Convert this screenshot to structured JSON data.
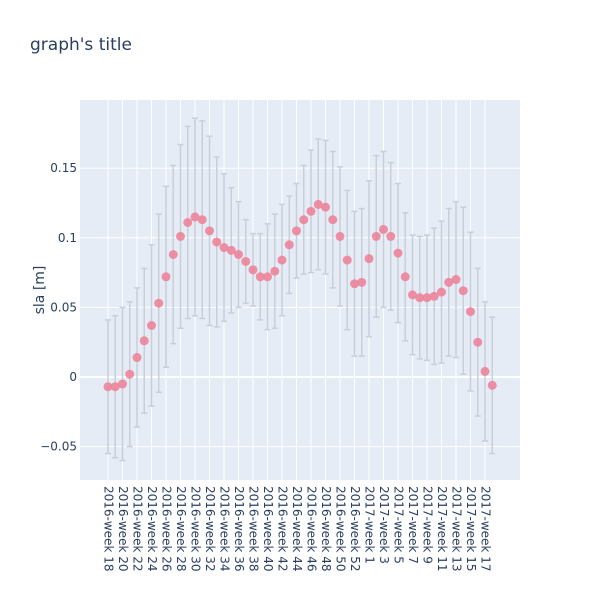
{
  "colors": {
    "plot_bg": "#e5ecf6",
    "grid": "#ffffff",
    "marker": "#ef7f95",
    "error_bar": "#c9cfd9",
    "text": "#2a3f5f"
  },
  "chart_data": {
    "type": "scatter",
    "title": "graph's title",
    "xlabel": "",
    "ylabel": "sla [m]",
    "ylim": [
      -0.074,
      0.199
    ],
    "yticks": [
      {
        "value": -0.05,
        "label": "−0.05"
      },
      {
        "value": 0,
        "label": "0"
      },
      {
        "value": 0.05,
        "label": "0.05"
      },
      {
        "value": 0.1,
        "label": "0.1"
      },
      {
        "value": 0.15,
        "label": "0.15"
      }
    ],
    "grid": true,
    "legend": "none",
    "x_tick_labels": [
      "2016-week 18",
      "2016-week 20",
      "2016-week 22",
      "2016-week 24",
      "2016-week 26",
      "2016-week 28",
      "2016-week 30",
      "2016-week 32",
      "2016-week 34",
      "2016-week 36",
      "2016-week 38",
      "2016-week 40",
      "2016-week 42",
      "2016-week 44",
      "2016-week 46",
      "2016-week 48",
      "2016-week 50",
      "2016-week 52",
      "2017-week 1",
      "2017-week 3",
      "2017-week 5",
      "2017-week 7",
      "2017-week 9",
      "2017-week 11",
      "2017-week 13",
      "2017-week 15",
      "2017-week 17"
    ],
    "points": [
      {
        "y": -0.007,
        "err": 0.048
      },
      {
        "y": -0.007,
        "err": 0.051
      },
      {
        "y": -0.005,
        "err": 0.055
      },
      {
        "y": 0.002,
        "err": 0.052
      },
      {
        "y": 0.014,
        "err": 0.05
      },
      {
        "y": 0.026,
        "err": 0.052
      },
      {
        "y": 0.037,
        "err": 0.058
      },
      {
        "y": 0.053,
        "err": 0.064
      },
      {
        "y": 0.072,
        "err": 0.065
      },
      {
        "y": 0.088,
        "err": 0.064
      },
      {
        "y": 0.101,
        "err": 0.066
      },
      {
        "y": 0.111,
        "err": 0.069
      },
      {
        "y": 0.115,
        "err": 0.071
      },
      {
        "y": 0.113,
        "err": 0.071
      },
      {
        "y": 0.105,
        "err": 0.068
      },
      {
        "y": 0.097,
        "err": 0.061
      },
      {
        "y": 0.093,
        "err": 0.053
      },
      {
        "y": 0.091,
        "err": 0.045
      },
      {
        "y": 0.088,
        "err": 0.038
      },
      {
        "y": 0.083,
        "err": 0.03
      },
      {
        "y": 0.077,
        "err": 0.026
      },
      {
        "y": 0.072,
        "err": 0.031
      },
      {
        "y": 0.072,
        "err": 0.038
      },
      {
        "y": 0.076,
        "err": 0.041
      },
      {
        "y": 0.084,
        "err": 0.04
      },
      {
        "y": 0.095,
        "err": 0.035
      },
      {
        "y": 0.105,
        "err": 0.034
      },
      {
        "y": 0.113,
        "err": 0.039
      },
      {
        "y": 0.119,
        "err": 0.044
      },
      {
        "y": 0.124,
        "err": 0.047
      },
      {
        "y": 0.122,
        "err": 0.048
      },
      {
        "y": 0.113,
        "err": 0.049
      },
      {
        "y": 0.101,
        "err": 0.05
      },
      {
        "y": 0.084,
        "err": 0.05
      },
      {
        "y": 0.067,
        "err": 0.052
      },
      {
        "y": 0.068,
        "err": 0.053
      },
      {
        "y": 0.085,
        "err": 0.056
      },
      {
        "y": 0.101,
        "err": 0.058
      },
      {
        "y": 0.106,
        "err": 0.056
      },
      {
        "y": 0.101,
        "err": 0.053
      },
      {
        "y": 0.089,
        "err": 0.05
      },
      {
        "y": 0.072,
        "err": 0.046
      },
      {
        "y": 0.059,
        "err": 0.043
      },
      {
        "y": 0.057,
        "err": 0.044
      },
      {
        "y": 0.057,
        "err": 0.045
      },
      {
        "y": 0.058,
        "err": 0.049
      },
      {
        "y": 0.061,
        "err": 0.051
      },
      {
        "y": 0.068,
        "err": 0.053
      },
      {
        "y": 0.07,
        "err": 0.056
      },
      {
        "y": 0.062,
        "err": 0.06
      },
      {
        "y": 0.047,
        "err": 0.057
      },
      {
        "y": 0.025,
        "err": 0.053
      },
      {
        "y": 0.004,
        "err": 0.05
      },
      {
        "y": -0.006,
        "err": 0.049
      }
    ]
  }
}
